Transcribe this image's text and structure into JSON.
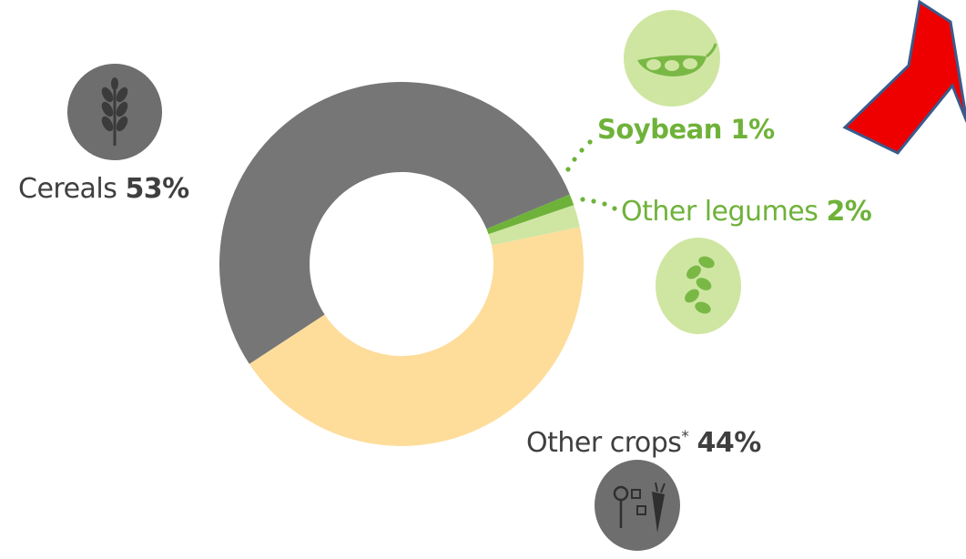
{
  "colors": {
    "cereals": "#767676",
    "other_crops": "#fedd9b",
    "soybean": "#6fb23a",
    "other_legumes": "#cfe6a2",
    "label_dark": "#3f3f3f",
    "label_green": "#6fb23a",
    "icon_grey": "#6e6e6e",
    "icon_green_bg": "#cfe6a2",
    "arrow_red": "#ee0000",
    "arrow_outline": "#3a5a8c"
  },
  "icons": {
    "cereals": "wheat-icon",
    "soybean": "soybean-pod-icon",
    "other_legumes": "legume-icon",
    "other_crops": "crops-icon",
    "pointer": "red-arrow-icon"
  },
  "chart_data": {
    "type": "pie",
    "donut": true,
    "title": "",
    "slices": [
      {
        "name": "Cereals",
        "value": 53,
        "label_name": "Cereals",
        "label_value": "53%",
        "color": "#767676"
      },
      {
        "name": "Soybean",
        "value": 1,
        "label_name": "Soybean",
        "label_value": "1%",
        "color": "#6fb23a"
      },
      {
        "name": "Other legumes",
        "value": 2,
        "label_name": "Other legumes",
        "label_value": "2%",
        "color": "#cfe6a2"
      },
      {
        "name": "Other crops*",
        "value": 44,
        "label_name": "Other crops",
        "label_sup": "*",
        "label_value": "44%",
        "color": "#fedd9b"
      }
    ]
  }
}
